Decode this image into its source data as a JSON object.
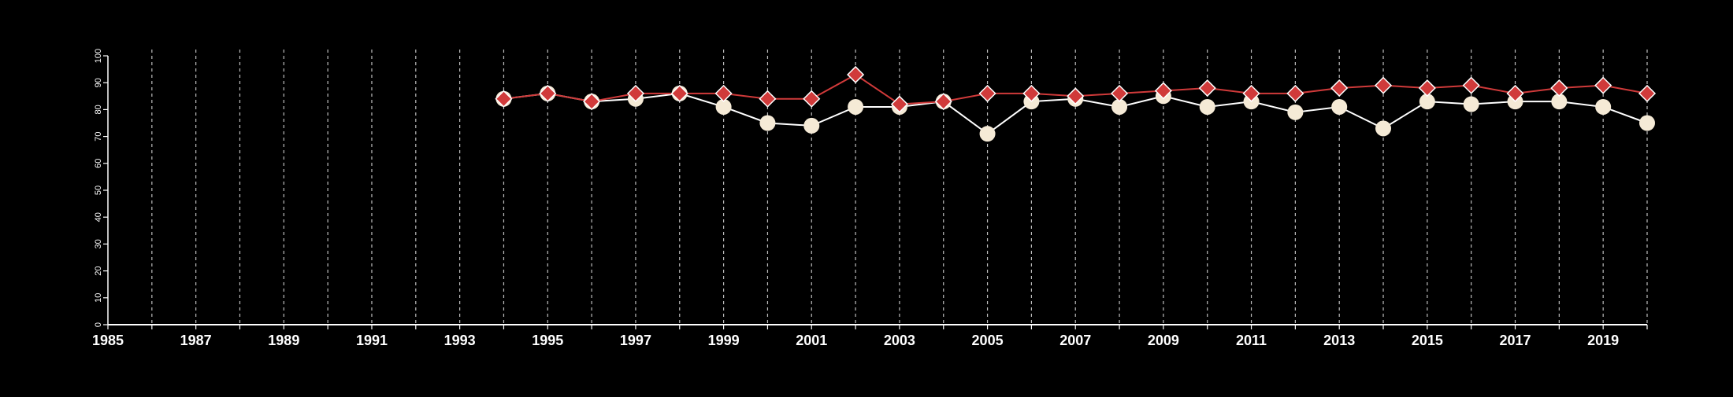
{
  "chart_data": {
    "type": "line",
    "title": "",
    "xlabel": "",
    "ylabel": "",
    "xlim": [
      1985,
      2020
    ],
    "ylim": [
      0,
      100
    ],
    "y_ticks": [
      0,
      10,
      20,
      30,
      40,
      50,
      60,
      70,
      80,
      90,
      100
    ],
    "x_tick_labels": [
      1985,
      1987,
      1989,
      1991,
      1993,
      1995,
      1997,
      1999,
      2001,
      2003,
      2005,
      2007,
      2009,
      2011,
      2013,
      2015,
      2017,
      2019
    ],
    "vertical_gridlines": "dashed, yearly",
    "legend": "none",
    "series": [
      {
        "color": "#f5ead6",
        "line_color": "#ffffff",
        "marker": "circle",
        "x": [
          1994,
          1995,
          1996,
          1997,
          1998,
          1999,
          2000,
          2001,
          2002,
          2003,
          2004,
          2005,
          2006,
          2007,
          2008,
          2009,
          2010,
          2011,
          2012,
          2013,
          2014,
          2015,
          2016,
          2017,
          2018,
          2019,
          2020
        ],
        "values": [
          84,
          86,
          83,
          84,
          86,
          81,
          75,
          74,
          81,
          81,
          83,
          71,
          83,
          84,
          81,
          85,
          81,
          83,
          79,
          81,
          73,
          83,
          82,
          83,
          83,
          81,
          75
        ]
      },
      {
        "color": "#d03a3a",
        "line_color": "#d03a3a",
        "marker": "diamond",
        "x": [
          1994,
          1995,
          1996,
          1997,
          1998,
          1999,
          2000,
          2001,
          2002,
          2003,
          2004,
          2005,
          2006,
          2007,
          2008,
          2009,
          2010,
          2011,
          2012,
          2013,
          2014,
          2015,
          2016,
          2017,
          2018,
          2019,
          2020
        ],
        "values": [
          84,
          86,
          83,
          86,
          86,
          86,
          84,
          84,
          93,
          82,
          83,
          86,
          86,
          85,
          86,
          87,
          88,
          86,
          86,
          88,
          89,
          88,
          89,
          86,
          88,
          89,
          86
        ]
      }
    ]
  }
}
